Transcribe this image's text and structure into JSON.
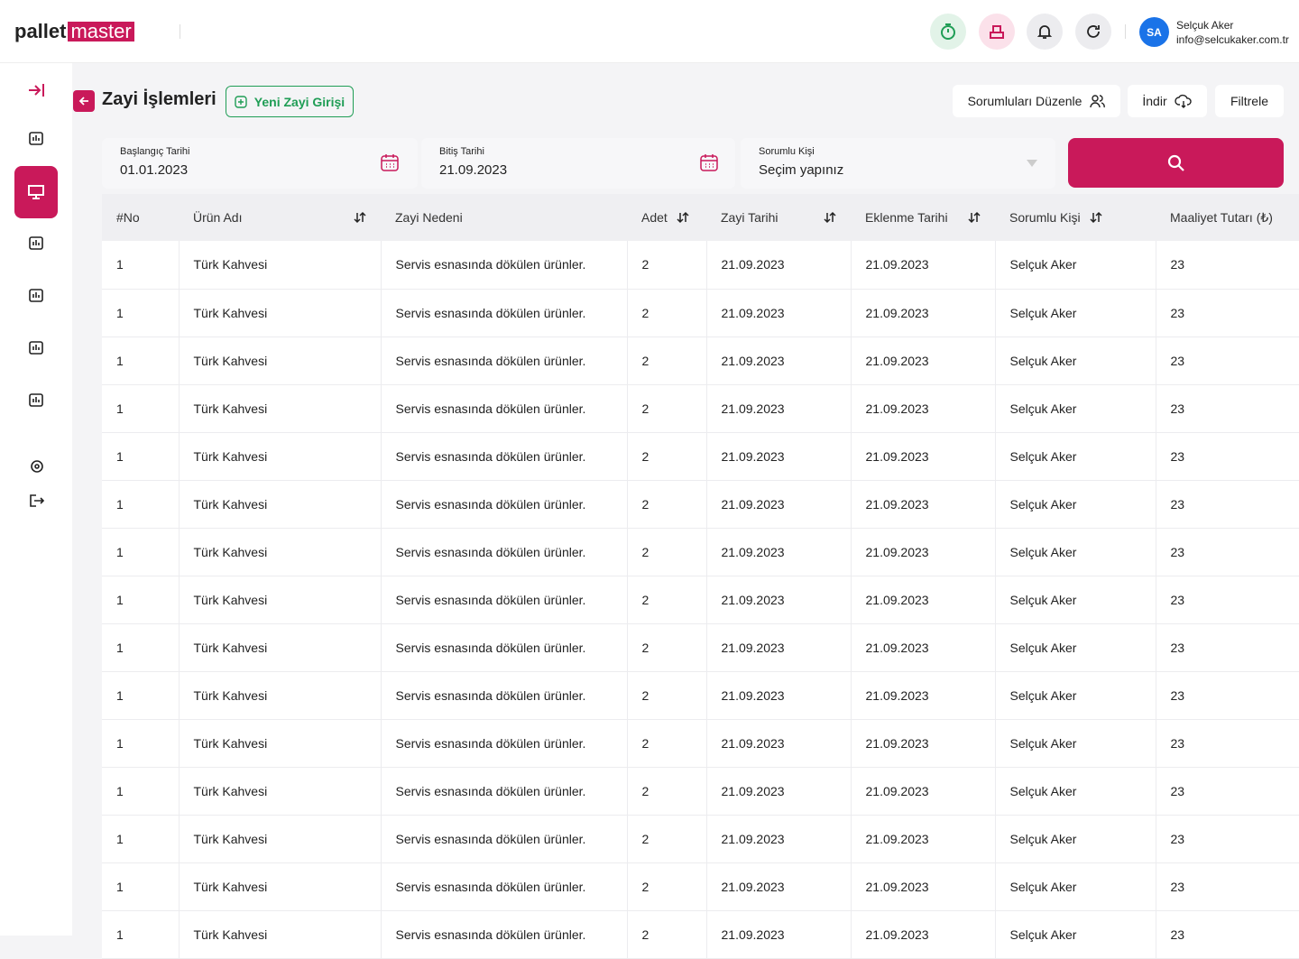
{
  "header": {
    "logo": {
      "brand": "pallet",
      "suffix": "master"
    },
    "user": {
      "initials": "SA",
      "name": "Selçuk Aker",
      "email": "info@selcukaker.com.tr"
    }
  },
  "page": {
    "title": "Zayi İşlemleri",
    "new_button": "Yeni Zayi Girişi",
    "actions": [
      "Sorumluları Düzenle",
      "İndir",
      "Filtrele"
    ]
  },
  "filters": {
    "start": {
      "label": "Başlangıç Tarihi",
      "value": "01.01.2023"
    },
    "end": {
      "label": "Bitiş Tarihi",
      "value": "21.09.2023"
    },
    "person": {
      "label": "Sorumlu Kişi",
      "value": "Seçim yapınız"
    }
  },
  "table": {
    "columns": [
      "#No",
      "Ürün Adı",
      "Zayi Nedeni",
      "Adet",
      "Zayi Tarihi",
      "Eklenme Tarihi",
      "Sorumlu Kişi",
      "Maaliyet Tutarı (₺)"
    ],
    "rows": [
      [
        "1",
        "Türk Kahvesi",
        "Servis esnasında dökülen ürünler.",
        "2",
        "21.09.2023",
        "21.09.2023",
        "Selçuk Aker",
        "23"
      ],
      [
        "1",
        "Türk Kahvesi",
        "Servis esnasında dökülen ürünler.",
        "2",
        "21.09.2023",
        "21.09.2023",
        "Selçuk Aker",
        "23"
      ],
      [
        "1",
        "Türk Kahvesi",
        "Servis esnasında dökülen ürünler.",
        "2",
        "21.09.2023",
        "21.09.2023",
        "Selçuk Aker",
        "23"
      ],
      [
        "1",
        "Türk Kahvesi",
        "Servis esnasında dökülen ürünler.",
        "2",
        "21.09.2023",
        "21.09.2023",
        "Selçuk Aker",
        "23"
      ],
      [
        "1",
        "Türk Kahvesi",
        "Servis esnasında dökülen ürünler.",
        "2",
        "21.09.2023",
        "21.09.2023",
        "Selçuk Aker",
        "23"
      ],
      [
        "1",
        "Türk Kahvesi",
        "Servis esnasında dökülen ürünler.",
        "2",
        "21.09.2023",
        "21.09.2023",
        "Selçuk Aker",
        "23"
      ],
      [
        "1",
        "Türk Kahvesi",
        "Servis esnasında dökülen ürünler.",
        "2",
        "21.09.2023",
        "21.09.2023",
        "Selçuk Aker",
        "23"
      ],
      [
        "1",
        "Türk Kahvesi",
        "Servis esnasında dökülen ürünler.",
        "2",
        "21.09.2023",
        "21.09.2023",
        "Selçuk Aker",
        "23"
      ],
      [
        "1",
        "Türk Kahvesi",
        "Servis esnasında dökülen ürünler.",
        "2",
        "21.09.2023",
        "21.09.2023",
        "Selçuk Aker",
        "23"
      ],
      [
        "1",
        "Türk Kahvesi",
        "Servis esnasında dökülen ürünler.",
        "2",
        "21.09.2023",
        "21.09.2023",
        "Selçuk Aker",
        "23"
      ],
      [
        "1",
        "Türk Kahvesi",
        "Servis esnasında dökülen ürünler.",
        "2",
        "21.09.2023",
        "21.09.2023",
        "Selçuk Aker",
        "23"
      ],
      [
        "1",
        "Türk Kahvesi",
        "Servis esnasında dökülen ürünler.",
        "2",
        "21.09.2023",
        "21.09.2023",
        "Selçuk Aker",
        "23"
      ],
      [
        "1",
        "Türk Kahvesi",
        "Servis esnasında dökülen ürünler.",
        "2",
        "21.09.2023",
        "21.09.2023",
        "Selçuk Aker",
        "23"
      ],
      [
        "1",
        "Türk Kahvesi",
        "Servis esnasında dökülen ürünler.",
        "2",
        "21.09.2023",
        "21.09.2023",
        "Selçuk Aker",
        "23"
      ],
      [
        "1",
        "Türk Kahvesi",
        "Servis esnasında dökülen ürünler.",
        "2",
        "21.09.2023",
        "21.09.2023",
        "Selçuk Aker",
        "23"
      ]
    ]
  }
}
